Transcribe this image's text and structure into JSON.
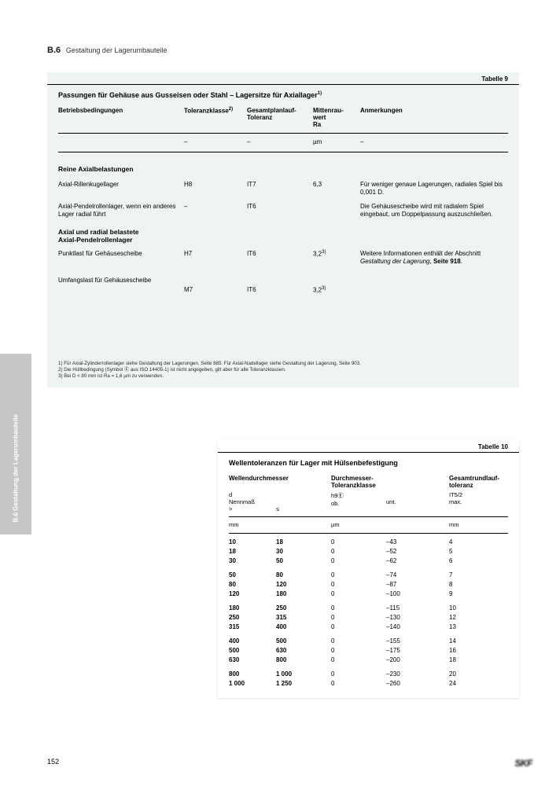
{
  "header": {
    "section": "B.6",
    "title": "Gestaltung der Lagerumbauteile"
  },
  "sideTab": "B.6  Gestaltung der Lagerumbauteile",
  "table9": {
    "label": "Tabelle 9",
    "title": "Passungen für Gehäuse aus Gusseisen oder Stahl – Lagersitze für Axiallager",
    "titleSup": "1)",
    "cols": {
      "c1": "Betriebsbedingungen",
      "c2": "Toleranzklasse",
      "c2sup": "2)",
      "c3": "Gesamtplanlauf-Toleranz",
      "c4": "Mittenrau-\nwert\nRa",
      "c5": "Anmerkungen"
    },
    "units": {
      "c1": "",
      "c2": "–",
      "c3": "–",
      "c4": "µm",
      "c5": "–"
    },
    "sub1": "Reine Axialbelastungen",
    "rows1": [
      {
        "c1": "Axial-Rillenkugellager",
        "c2": "H8",
        "c3": "IT7",
        "c4": "6,3",
        "c5": "Für weniger genaue Lagerungen, radiales Spiel bis 0,001 D."
      },
      {
        "c1": "Axial-Pendelrollenlager, wenn ein anderes Lager radial führt",
        "c2": "–",
        "c3": "IT6",
        "c4": "",
        "c5": "Die Gehäusescheibe wird mit radialem Spiel eingebaut, um Doppelpassung auszuschließen."
      }
    ],
    "sub2": "Axial und radial belastete\nAxial-Pendelrollenlager",
    "rows2": [
      {
        "c1": "Punktlast für Gehäusescheibe",
        "c2": "H7",
        "c3": "IT6",
        "c4": "3,2",
        "c4sup": "3)",
        "c5a": "Weitere Informationen enthält der Abschnitt ",
        "c5i": "Gestaltung der Lagerung",
        "c5b": ", ",
        "c5bold": "Seite 918",
        "c5end": "."
      },
      {
        "c1": "Umfangslast für Gehäusescheibe",
        "c2": "M7",
        "c3": "IT6",
        "c4": "3,2",
        "c4sup": "3)",
        "c5a": "",
        "c5i": "",
        "c5b": "",
        "c5bold": "",
        "c5end": ""
      }
    ],
    "footnotes": [
      "1)  Für Axial-Zylinderrollenlager siehe Gestaltung der Lagerungen, Seite 885. Für Axial-Nadellager siehe Gestaltung der Lagerung, Seite 903.",
      "2)  Die Hüllbedingung (Symbol Ⓔ aus ISO 14405-1) ist nicht angegeben, gilt aber für alle Toleranzklassen.",
      "3)  Bei D < 80 mm ist Ra = 1,6 µm zu verwenden."
    ]
  },
  "table10": {
    "label": "Tabelle 10",
    "title": "Wellentoleranzen für Lager mit Hülsenbefestigung",
    "cols": {
      "c1": "Wellendurchmesser",
      "c3": "Durchmesser-\nToleranzklasse",
      "c5": "Gesamtrundlauf-\ntoleranz"
    },
    "sub": {
      "s1": "d\nNennmaß\n>",
      "s2": "\n\n≤",
      "s3": "h9Ⓔ\nob.",
      "s4": "\nunt.",
      "s5": "IT5/2\nmax."
    },
    "units": {
      "u1": "mm",
      "u2": "",
      "u3": "µm",
      "u4": "",
      "u5": "mm"
    },
    "groups": [
      [
        {
          "a": "10",
          "b": "18",
          "ob": "0",
          "un": "–43",
          "m": "4"
        },
        {
          "a": "18",
          "b": "30",
          "ob": "0",
          "un": "–52",
          "m": "5"
        },
        {
          "a": "30",
          "b": "50",
          "ob": "0",
          "un": "–62",
          "m": "6"
        }
      ],
      [
        {
          "a": "50",
          "b": "80",
          "ob": "0",
          "un": "–74",
          "m": "7"
        },
        {
          "a": "80",
          "b": "120",
          "ob": "0",
          "un": "–87",
          "m": "8"
        },
        {
          "a": "120",
          "b": "180",
          "ob": "0",
          "un": "–100",
          "m": "9"
        }
      ],
      [
        {
          "a": "180",
          "b": "250",
          "ob": "0",
          "un": "–115",
          "m": "10"
        },
        {
          "a": "250",
          "b": "315",
          "ob": "0",
          "un": "–130",
          "m": "12"
        },
        {
          "a": "315",
          "b": "400",
          "ob": "0",
          "un": "–140",
          "m": "13"
        }
      ],
      [
        {
          "a": "400",
          "b": "500",
          "ob": "0",
          "un": "–155",
          "m": "14"
        },
        {
          "a": "500",
          "b": "630",
          "ob": "0",
          "un": "–175",
          "m": "16"
        },
        {
          "a": "630",
          "b": "800",
          "ob": "0",
          "un": "–200",
          "m": "18"
        }
      ],
      [
        {
          "a": "800",
          "b": "1 000",
          "ob": "0",
          "un": "–230",
          "m": "20"
        },
        {
          "a": "1 000",
          "b": "1 250",
          "ob": "0",
          "un": "–260",
          "m": "24"
        }
      ]
    ]
  },
  "footer": {
    "page": "152",
    "brand": "SKF"
  }
}
